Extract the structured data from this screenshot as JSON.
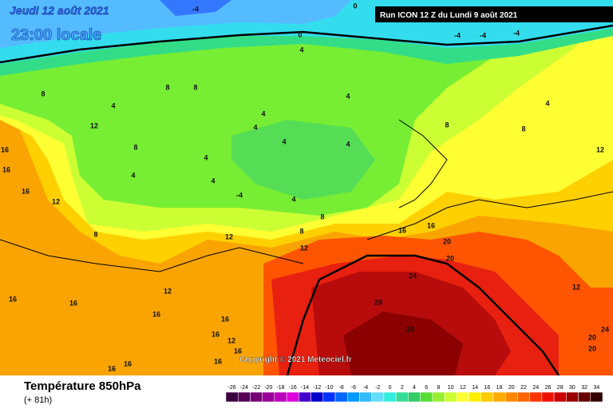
{
  "header": {
    "date": "Jeudi 12 août 2021",
    "time": "23:00 locale",
    "run": "Run ICON 12 Z du Lundi 9 août 2021"
  },
  "copyright": "Copyright © 2021 Meteociel.fr",
  "footer": {
    "title": "Température 850hPa",
    "lead": "(+ 81h)"
  },
  "scale": {
    "labels": [
      -26,
      -24,
      -22,
      -20,
      -18,
      -16,
      -14,
      -12,
      -10,
      -8,
      -6,
      -4,
      -2,
      0,
      2,
      4,
      6,
      8,
      10,
      12,
      14,
      16,
      18,
      20,
      22,
      24,
      26,
      28,
      30,
      32,
      34
    ],
    "colors": [
      "#3a0040",
      "#550055",
      "#770077",
      "#990099",
      "#bb00bb",
      "#dd00dd",
      "#4400cc",
      "#0000cc",
      "#0033ff",
      "#0066ff",
      "#0099ff",
      "#33bbff",
      "#66ddff",
      "#33eedd",
      "#33dd99",
      "#33cc66",
      "#55dd33",
      "#99ee33",
      "#ccff33",
      "#ffff33",
      "#ffee00",
      "#ffcc00",
      "#ffaa00",
      "#ff8800",
      "#ff6600",
      "#ff3300",
      "#ee1100",
      "#cc0000",
      "#990000",
      "#660000",
      "#330000"
    ]
  },
  "contour_labels": [
    -4,
    0,
    0,
    4,
    -4,
    -4,
    -4,
    8,
    8,
    4,
    8,
    4,
    4,
    4,
    4,
    4,
    12,
    8,
    4,
    4,
    4,
    -4,
    4,
    8,
    8,
    8,
    8,
    4,
    12,
    16,
    16,
    12,
    8,
    12,
    12,
    16,
    16,
    20,
    20,
    24,
    28,
    28,
    16,
    16,
    16,
    12,
    16,
    16,
    16,
    12,
    16,
    16,
    16,
    16,
    12,
    20,
    20,
    24
  ]
}
